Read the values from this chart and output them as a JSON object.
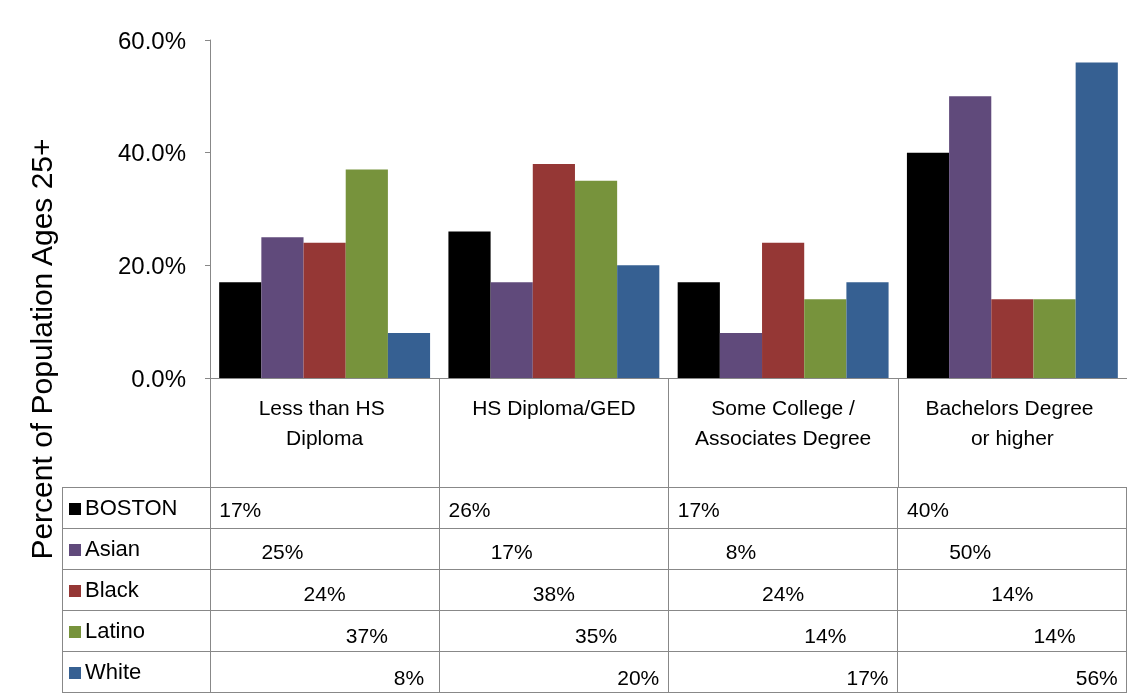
{
  "chart_data": {
    "type": "bar",
    "ylabel": "Percent of Population  Ages 25+",
    "categories": [
      "Less than HS Diploma",
      "HS Diploma/GED",
      "Some College /Associates Degree",
      "Bachelors Degree or higher"
    ],
    "series": [
      {
        "name": "BOSTON",
        "color": "#000000",
        "values": [
          17,
          26,
          17,
          40
        ],
        "value_labels": [
          "17%",
          "26%",
          "17%",
          "40%"
        ]
      },
      {
        "name": "Asian",
        "color": "#604a7b",
        "values": [
          25,
          17,
          8,
          50
        ],
        "value_labels": [
          "25%",
          "17%",
          "8%",
          "50%"
        ]
      },
      {
        "name": "Black",
        "color": "#953735",
        "values": [
          24,
          38,
          24,
          14
        ],
        "value_labels": [
          "24%",
          "38%",
          "24%",
          "14%"
        ]
      },
      {
        "name": "Latino",
        "color": "#77933c",
        "values": [
          37,
          35,
          14,
          14
        ],
        "value_labels": [
          "37%",
          "35%",
          "14%",
          "14%"
        ]
      },
      {
        "name": "White",
        "color": "#366092",
        "values": [
          8,
          20,
          17,
          56
        ],
        "value_labels": [
          "8%",
          "20%",
          "17%",
          "56%"
        ]
      }
    ],
    "ylim": [
      0,
      60
    ],
    "yticks": [
      {
        "value": 0,
        "label": "0.0%"
      },
      {
        "value": 20,
        "label": "20.0%"
      },
      {
        "value": 40,
        "label": "40.0%"
      },
      {
        "value": 60,
        "label": "60.0%"
      }
    ],
    "grid": false,
    "legend": "bottom left"
  }
}
